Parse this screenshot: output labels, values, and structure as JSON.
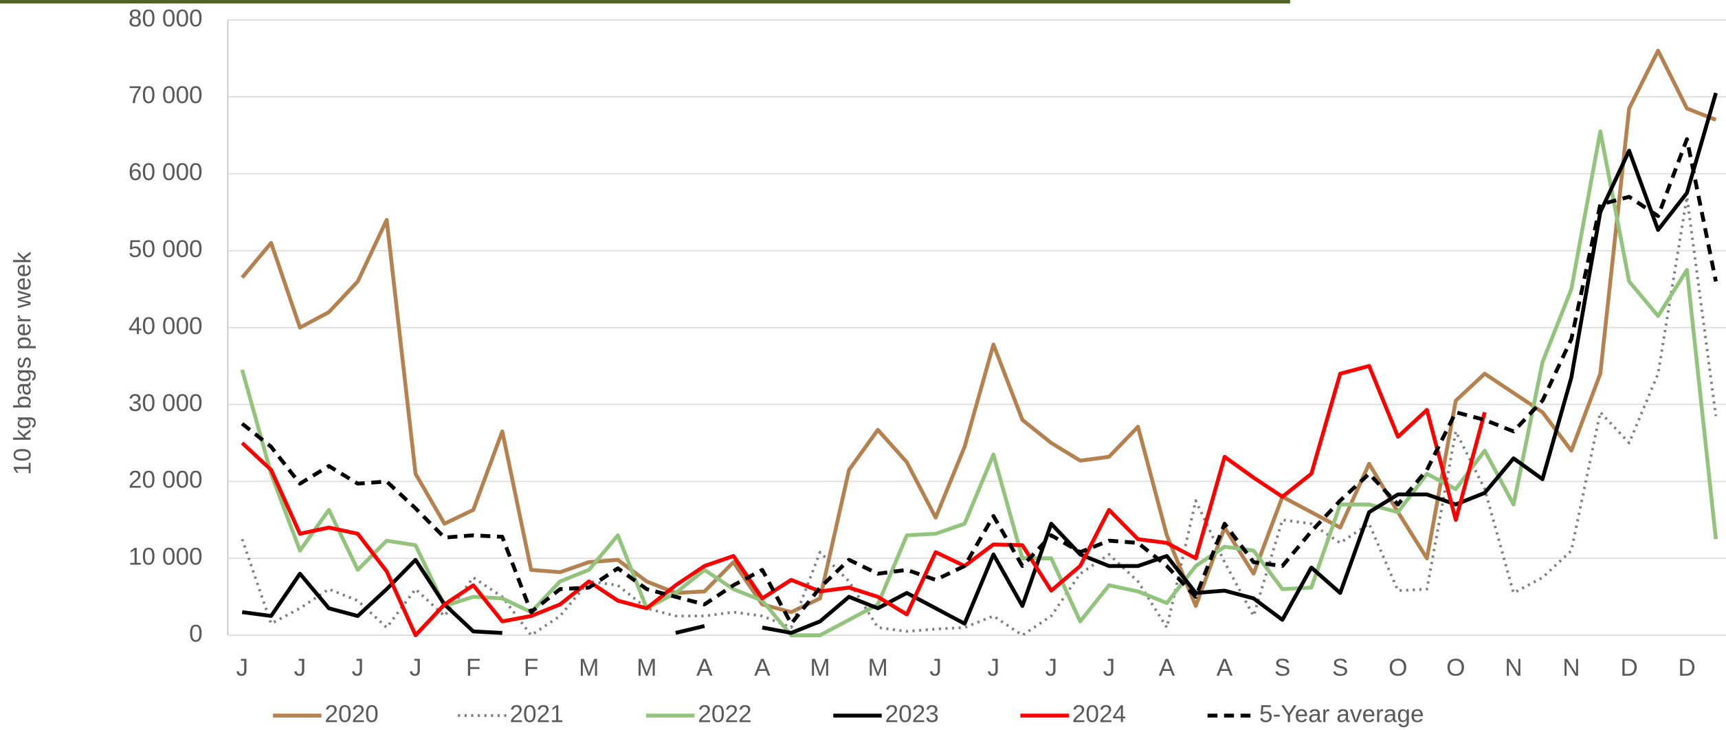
{
  "chart_data": {
    "type": "line",
    "y_label": "10 kg bags per week",
    "categories": [
      "J",
      null,
      "J",
      null,
      "J",
      null,
      "J",
      null,
      "F",
      null,
      "F",
      null,
      "M",
      null,
      "M",
      null,
      "A",
      null,
      "A",
      null,
      "M",
      null,
      "M",
      null,
      "J",
      null,
      "J",
      null,
      "J",
      null,
      "J",
      null,
      "A",
      null,
      "A",
      null,
      "S",
      null,
      "S",
      null,
      "O",
      null,
      "O",
      null,
      "N",
      null,
      "N",
      null,
      "D",
      null,
      "D",
      null
    ],
    "ylim": [
      0,
      80000
    ],
    "yticks": [
      {
        "value": 0,
        "label": "0"
      },
      {
        "value": 10000,
        "label": "10 000"
      },
      {
        "value": 20000,
        "label": "20 000"
      },
      {
        "value": 30000,
        "label": "30 000"
      },
      {
        "value": 40000,
        "label": "40 000"
      },
      {
        "value": 50000,
        "label": "50 000"
      },
      {
        "value": 60000,
        "label": "60 000"
      },
      {
        "value": 70000,
        "label": "70 000"
      },
      {
        "value": 80000,
        "label": "80 000"
      }
    ],
    "grid": true,
    "legend": "bottom",
    "series": [
      {
        "name": "2020",
        "color": "#b5814f",
        "style": "solid",
        "values": [
          46500,
          51000,
          40000,
          42000,
          46000,
          54000,
          21000,
          14500,
          16300,
          26500,
          8500,
          8200,
          9500,
          9800,
          7000,
          5500,
          5700,
          9500,
          4000,
          3000,
          4800,
          21500,
          26700,
          22500,
          15300,
          24500,
          37800,
          28000,
          25000,
          22700,
          23200,
          27100,
          13000,
          3800,
          14000,
          8000,
          18000,
          16000,
          14000,
          22300,
          16000,
          10000,
          30500,
          34000,
          31500,
          29000,
          24000,
          34000,
          68500,
          76000,
          68500,
          67000
        ]
      },
      {
        "name": "2021",
        "color": "#808080",
        "style": "dotted",
        "values": [
          12500,
          1500,
          3500,
          6000,
          4500,
          1000,
          6000,
          2500,
          7500,
          5000,
          0,
          2500,
          7000,
          6500,
          3500,
          2500,
          2500,
          3000,
          2500,
          1000,
          10800,
          7000,
          1000,
          500,
          800,
          1000,
          2500,
          0,
          2500,
          8000,
          10500,
          7000,
          1000,
          17500,
          9500,
          2500,
          15000,
          14500,
          12000,
          14500,
          5800,
          6000,
          26500,
          19000,
          5500,
          7500,
          11000,
          29000,
          25000,
          34000,
          57000,
          28500
        ]
      },
      {
        "name": "2022",
        "color": "#93c47d",
        "style": "solid",
        "values": [
          34500,
          21000,
          11000,
          16300,
          8500,
          12300,
          11700,
          3800,
          5000,
          4800,
          3000,
          7000,
          8500,
          13000,
          3500,
          5500,
          8500,
          6000,
          4500,
          0,
          0,
          2000,
          4000,
          13000,
          13200,
          14500,
          23500,
          10000,
          10000,
          1800,
          6500,
          5700,
          4200,
          9000,
          11500,
          11000,
          6000,
          6200,
          17000,
          17000,
          16000,
          21000,
          19000,
          24000,
          17000,
          35500,
          45000,
          65500,
          46000,
          41500,
          47500,
          12500
        ]
      },
      {
        "name": "2023",
        "color": "#000000",
        "style": "solid",
        "values": [
          3000,
          2500,
          8000,
          3500,
          2500,
          6000,
          9800,
          4000,
          500,
          300,
          null,
          null,
          null,
          null,
          null,
          300,
          1200,
          null,
          1000,
          300,
          1800,
          5000,
          3500,
          5500,
          3500,
          1500,
          10500,
          3800,
          14500,
          10500,
          9000,
          9000,
          10300,
          5500,
          5800,
          4800,
          2000,
          8800,
          5500,
          16000,
          18300,
          18300,
          17000,
          18500,
          23000,
          20300,
          33500,
          55000,
          63000,
          52700,
          57500,
          70500
        ]
      },
      {
        "name": "2024",
        "color": "#ff0000",
        "style": "solid",
        "values": [
          25000,
          21500,
          13200,
          14000,
          13200,
          8300,
          0,
          4000,
          6500,
          1800,
          2500,
          4000,
          7000,
          4500,
          3500,
          6500,
          9000,
          10300,
          4800,
          7200,
          5700,
          6200,
          5000,
          2700,
          10800,
          9000,
          11800,
          11700,
          5800,
          9000,
          16300,
          12500,
          12000,
          10000,
          23200,
          20500,
          18000,
          21000,
          34000,
          35000,
          25800,
          29300,
          15000,
          29000,
          null,
          null,
          null,
          null,
          null,
          null,
          null,
          null
        ]
      },
      {
        "name": "5-Year average",
        "color": "#000000",
        "style": "dashed",
        "values": [
          27500,
          24500,
          19700,
          22000,
          19700,
          20000,
          16500,
          12700,
          13000,
          12800,
          3000,
          6000,
          6200,
          8700,
          6000,
          5000,
          4000,
          6500,
          8500,
          1500,
          6200,
          9800,
          8000,
          8500,
          7200,
          9000,
          15500,
          9000,
          13000,
          10800,
          12300,
          12000,
          9000,
          5000,
          14500,
          9500,
          9000,
          13500,
          17500,
          21000,
          17000,
          21500,
          29000,
          28000,
          26500,
          30500,
          38500,
          56000,
          57000,
          54500,
          64500,
          46000
        ]
      }
    ]
  }
}
